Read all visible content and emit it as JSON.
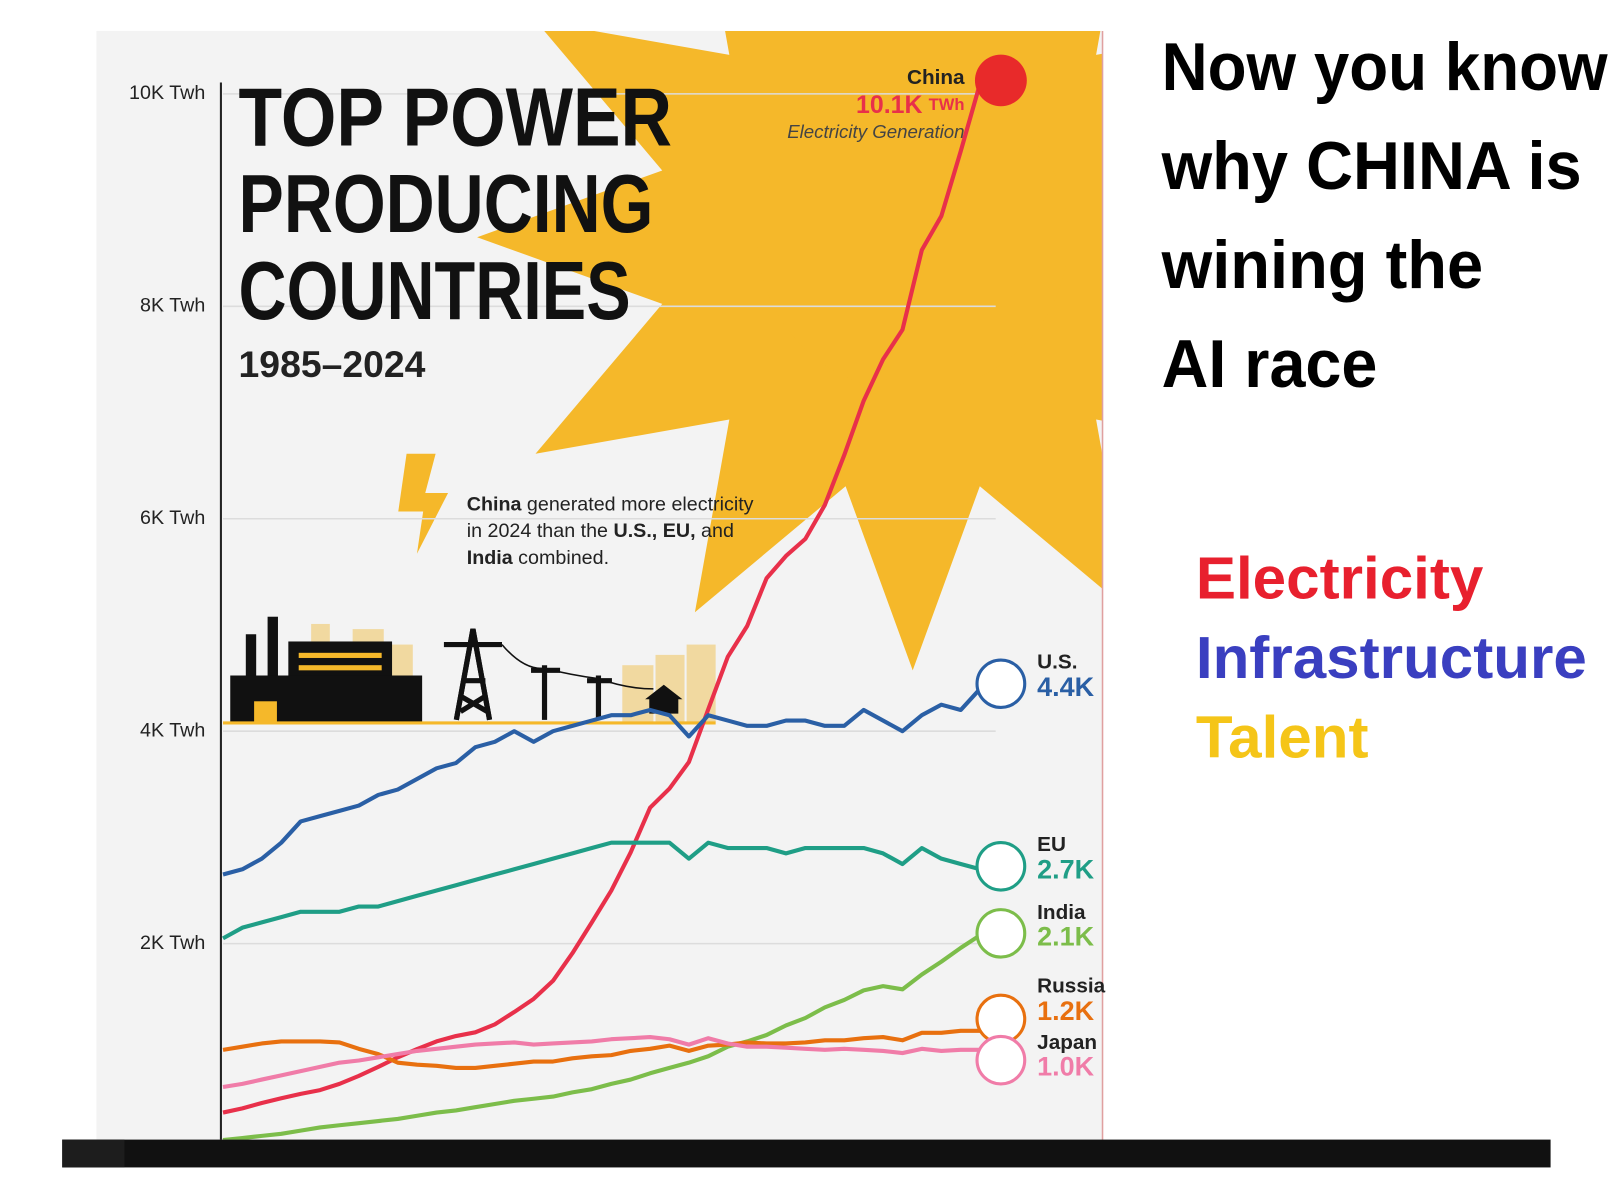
{
  "chart_data": {
    "type": "line",
    "title": [
      "TOP POWER",
      "PRODUCING",
      "COUNTRIES"
    ],
    "subtitle": "1985–2024",
    "annotation": {
      "segments": [
        {
          "text": "China",
          "bold": true
        },
        {
          "text": " generated more electricity",
          "bold": false
        },
        {
          "text": "in 2024 than the ",
          "bold": false
        },
        {
          "text": "U.S., EU,",
          "bold": true
        },
        {
          "text": " and",
          "bold": false
        },
        {
          "text": "India",
          "bold": true
        },
        {
          "text": " combined.",
          "bold": false
        }
      ],
      "line_breaks": [
        2,
        5
      ]
    },
    "highlight": {
      "unit": "TWh",
      "caption": "Electricity Generation"
    },
    "x": [
      1985,
      1986,
      1987,
      1988,
      1989,
      1990,
      1991,
      1992,
      1993,
      1994,
      1995,
      1996,
      1997,
      1998,
      1999,
      2000,
      2001,
      2002,
      2003,
      2004,
      2005,
      2006,
      2007,
      2008,
      2009,
      2010,
      2011,
      2012,
      2013,
      2014,
      2015,
      2016,
      2017,
      2018,
      2019,
      2020,
      2021,
      2022,
      2023,
      2024
    ],
    "xlim": [
      1985,
      2024
    ],
    "ylim": [
      0,
      10500
    ],
    "yticks": [
      {
        "value": 2000,
        "label": "2K Twh"
      },
      {
        "value": 4000,
        "label": "4K Twh"
      },
      {
        "value": 6000,
        "label": "6K Twh"
      },
      {
        "value": 8000,
        "label": "8K Twh"
      },
      {
        "value": 10000,
        "label": "10K Twh"
      }
    ],
    "grid": true,
    "series": [
      {
        "name": "China",
        "color": "#e8304a",
        "value_label": "10.1K",
        "values": [
          410,
          450,
          500,
          545,
          585,
          621,
          680,
          755,
          840,
          930,
          1008,
          1080,
          1130,
          1165,
          1240,
          1356,
          1480,
          1650,
          1910,
          2200,
          2500,
          2860,
          3280,
          3460,
          3710,
          4207,
          4700,
          4990,
          5440,
          5650,
          5811,
          6130,
          6600,
          7110,
          7500,
          7779,
          8530,
          8850,
          9460,
          10100
        ]
      },
      {
        "name": "U.S.",
        "color": "#2a5fa5",
        "value_label": "4.4K",
        "values": [
          2650,
          2700,
          2800,
          2950,
          3150,
          3200,
          3250,
          3300,
          3400,
          3450,
          3550,
          3650,
          3700,
          3850,
          3900,
          4000,
          3900,
          4000,
          4050,
          4100,
          4150,
          4150,
          4200,
          4150,
          3950,
          4150,
          4100,
          4050,
          4050,
          4100,
          4100,
          4050,
          4050,
          4200,
          4100,
          4000,
          4150,
          4250,
          4200,
          4400
        ]
      },
      {
        "name": "EU",
        "color": "#1f9e86",
        "value_label": "2.7K",
        "values": [
          2050,
          2150,
          2200,
          2250,
          2300,
          2300,
          2300,
          2350,
          2350,
          2400,
          2450,
          2500,
          2550,
          2600,
          2650,
          2700,
          2750,
          2800,
          2850,
          2900,
          2950,
          2950,
          2950,
          2950,
          2800,
          2950,
          2900,
          2900,
          2900,
          2850,
          2900,
          2900,
          2900,
          2900,
          2850,
          2750,
          2900,
          2800,
          2750,
          2700
        ]
      },
      {
        "name": "India",
        "color": "#7cbd4a",
        "value_label": "2.1K",
        "values": [
          150,
          170,
          190,
          210,
          240,
          270,
          290,
          310,
          330,
          350,
          380,
          410,
          430,
          460,
          490,
          520,
          540,
          560,
          600,
          630,
          680,
          720,
          780,
          830,
          880,
          940,
          1030,
          1080,
          1140,
          1230,
          1300,
          1400,
          1470,
          1560,
          1600,
          1570,
          1710,
          1830,
          1960,
          2080
        ]
      },
      {
        "name": "Russia",
        "color": "#e8700f",
        "value_label": "1.2K",
        "values": [
          1000,
          1030,
          1060,
          1080,
          1080,
          1080,
          1070,
          1010,
          960,
          880,
          860,
          850,
          830,
          830,
          850,
          870,
          890,
          890,
          920,
          940,
          950,
          990,
          1010,
          1040,
          990,
          1040,
          1050,
          1070,
          1060,
          1060,
          1070,
          1090,
          1090,
          1110,
          1120,
          1090,
          1160,
          1160,
          1180,
          1180
        ]
      },
      {
        "name": "Japan",
        "color": "#f07ca8",
        "value_label": "1.0K",
        "values": [
          650,
          680,
          720,
          760,
          800,
          840,
          880,
          900,
          930,
          960,
          990,
          1010,
          1030,
          1050,
          1060,
          1070,
          1050,
          1060,
          1070,
          1080,
          1100,
          1110,
          1120,
          1100,
          1050,
          1110,
          1060,
          1030,
          1030,
          1020,
          1010,
          1000,
          1010,
          1000,
          990,
          970,
          1010,
          990,
          1000,
          1000
        ]
      }
    ]
  },
  "side_text": {
    "headline": [
      "Now you know",
      "why CHINA is",
      "wining the",
      "AI race"
    ],
    "keywords": [
      {
        "text": "Electricity",
        "color": "#e8202e"
      },
      {
        "text": "Infrastructure",
        "color": "#3a3fc0"
      },
      {
        "text": "Talent",
        "color": "#f5c518"
      }
    ]
  }
}
